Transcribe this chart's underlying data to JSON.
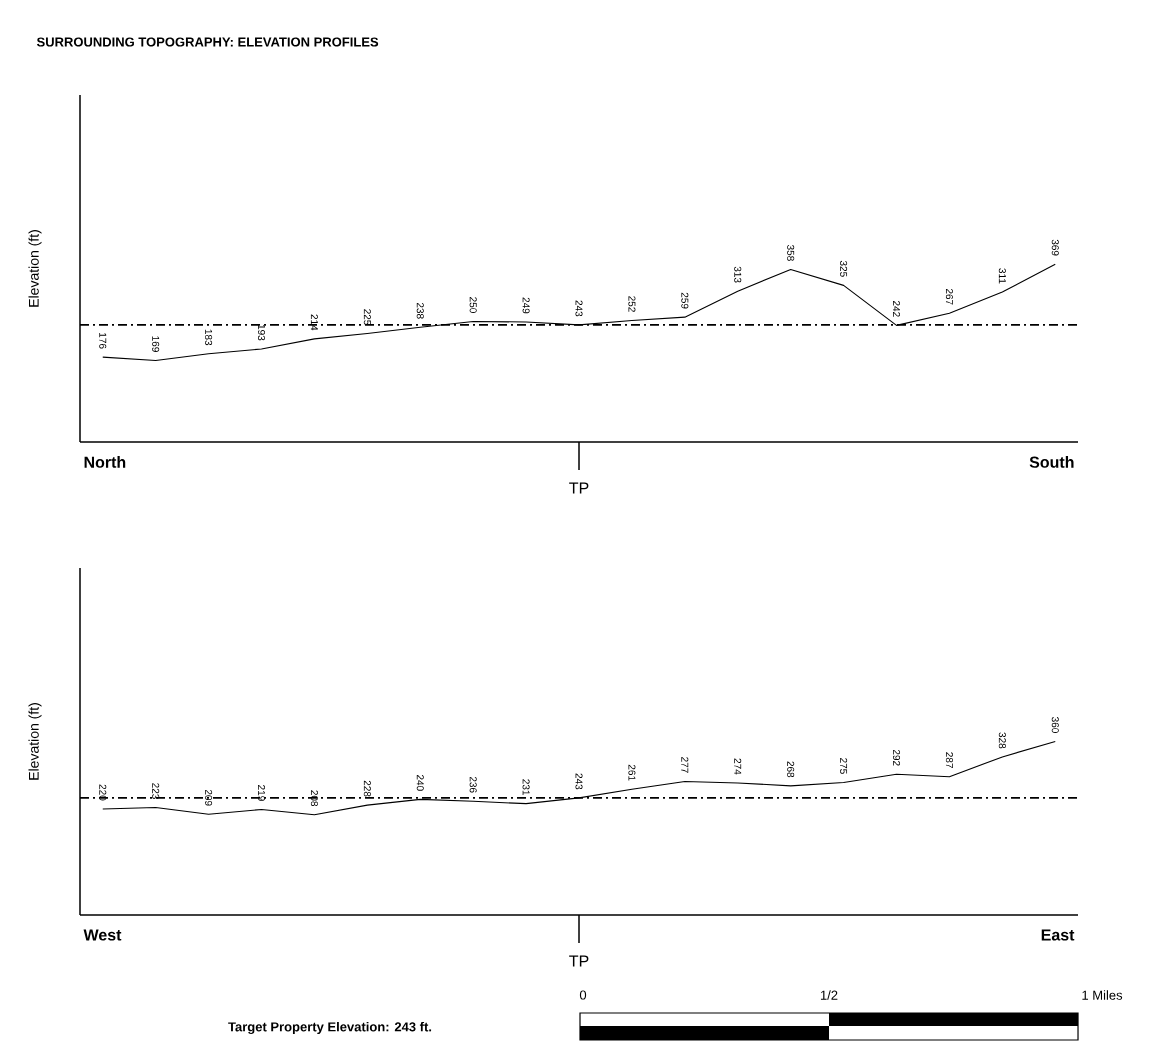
{
  "chart_data": [
    {
      "type": "line",
      "title": "SURROUNDING TOPOGRAPHY: ELEVATION PROFILES",
      "ylabel": "Elevation (ft)",
      "categories": [
        null,
        null,
        null,
        null,
        null,
        null,
        null,
        null,
        null,
        null,
        null,
        null,
        null,
        null,
        null,
        null,
        null,
        null,
        null
      ],
      "series": [
        {
          "color": "#000000",
          "values": [
            176,
            169,
            183,
            193,
            214,
            225,
            238,
            250,
            249,
            243,
            252,
            259,
            313,
            358,
            325,
            242,
            267,
            311,
            369
          ]
        }
      ],
      "ylim": [
        0,
        720
      ],
      "tick_labels": false,
      "data_labels": true,
      "marker": "none",
      "line_style": "solid",
      "ref_lines": [
        {
          "axis": "y",
          "value": 243,
          "color": "#000000",
          "line_style": "dashed"
        }
      ],
      "annotations": [
        "North",
        "TP",
        "South"
      ]
    },
    {
      "type": "line",
      "ylabel": "Elevation (ft)",
      "categories": [
        null,
        null,
        null,
        null,
        null,
        null,
        null,
        null,
        null,
        null,
        null,
        null,
        null,
        null,
        null,
        null,
        null,
        null,
        null
      ],
      "series": [
        {
          "color": "#000000",
          "values": [
            220,
            223,
            209,
            219,
            208,
            228,
            240,
            236,
            231,
            243,
            261,
            277,
            274,
            268,
            275,
            292,
            287,
            328,
            360
          ]
        }
      ],
      "ylim": [
        0,
        720
      ],
      "tick_labels": false,
      "data_labels": true,
      "marker": "none",
      "line_style": "solid",
      "ref_lines": [
        {
          "axis": "y",
          "value": 243,
          "color": "#000000",
          "line_style": "dashed"
        }
      ],
      "annotations": [
        "West",
        "TP",
        "East",
        "Target Property Elevation: 243 ft.",
        "0",
        "1/2",
        "1 Miles"
      ]
    }
  ]
}
